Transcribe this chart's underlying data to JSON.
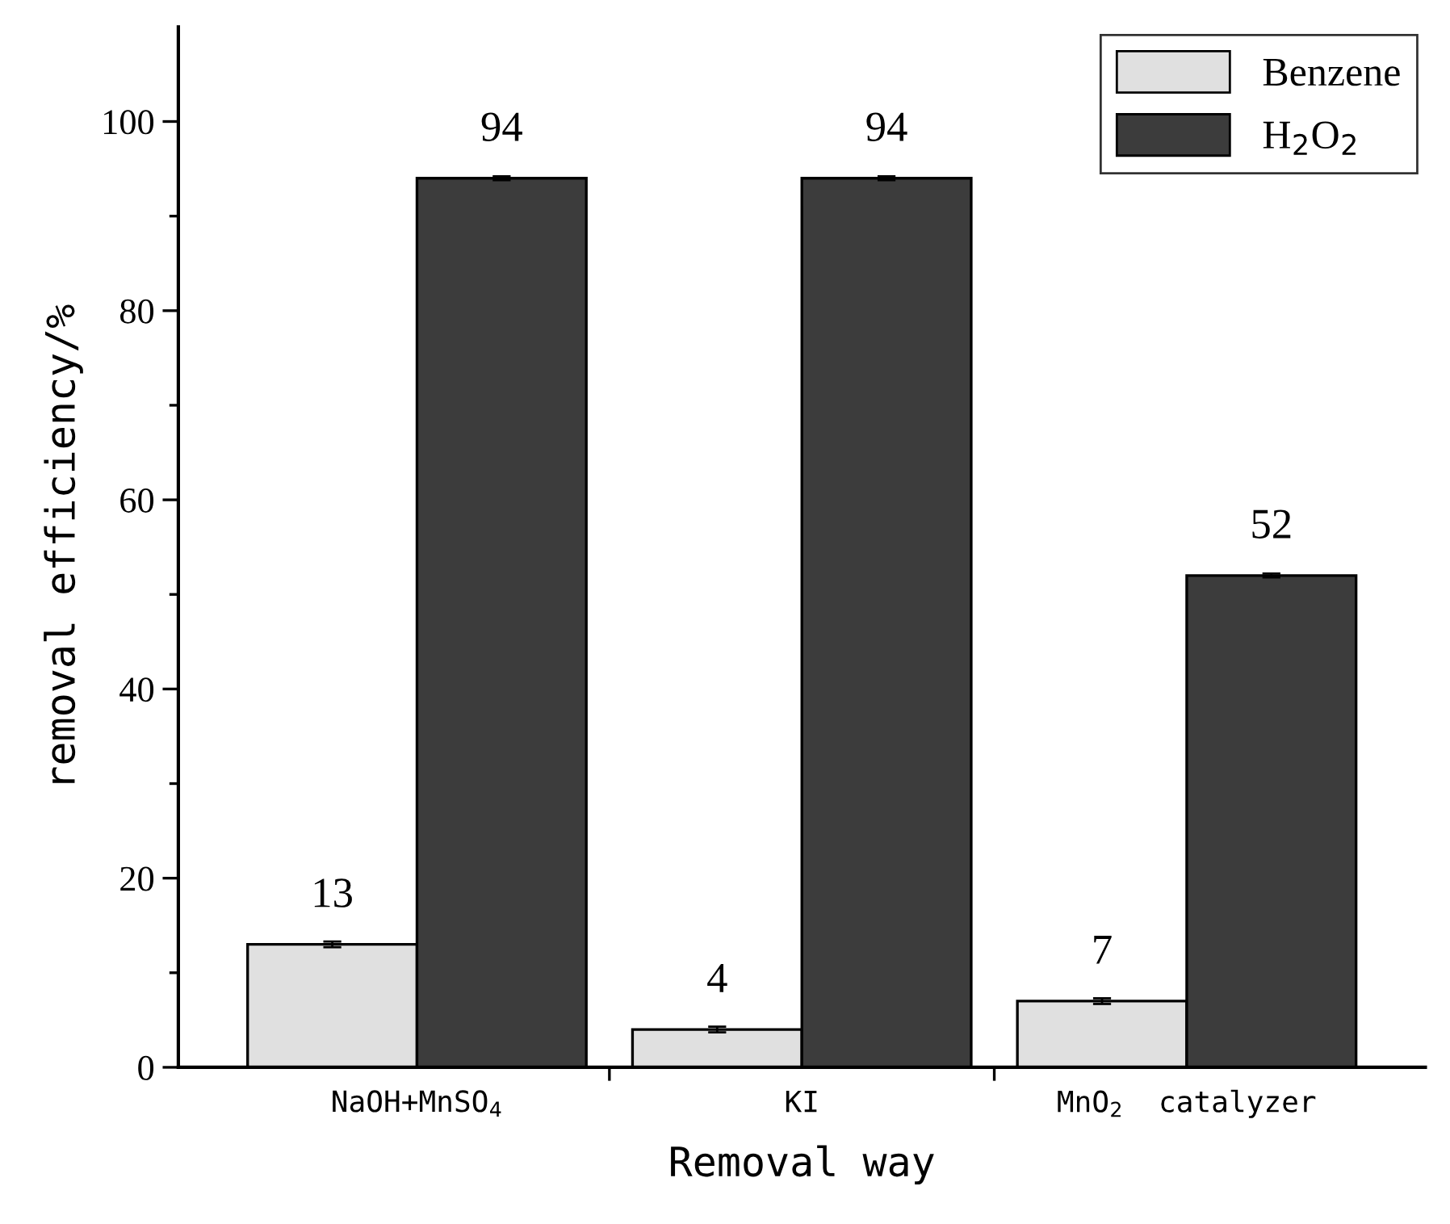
{
  "chart_data": {
    "type": "bar",
    "xlabel": "Removal way",
    "ylabel": "removal efficiency/%",
    "categories": [
      "NaOH+MnSO$_{4}$",
      "KI",
      "MnO$_{2}$  catalyzer"
    ],
    "series": [
      {
        "name": "Benzene",
        "color": "#e0e0e0",
        "values": [
          13,
          4,
          7
        ],
        "errors": [
          0.3,
          0.3,
          0.3
        ]
      },
      {
        "name": "H$_{2}$O$_{2}$",
        "color": "#3c3c3c",
        "values": [
          94,
          94,
          52
        ],
        "errors": [
          0.2,
          0.2,
          0.2
        ]
      }
    ],
    "ylim": [
      0,
      110
    ],
    "yticks": [
      0,
      20,
      40,
      60,
      80,
      100
    ],
    "data_labels": true,
    "grid": false,
    "legend": "top right"
  }
}
